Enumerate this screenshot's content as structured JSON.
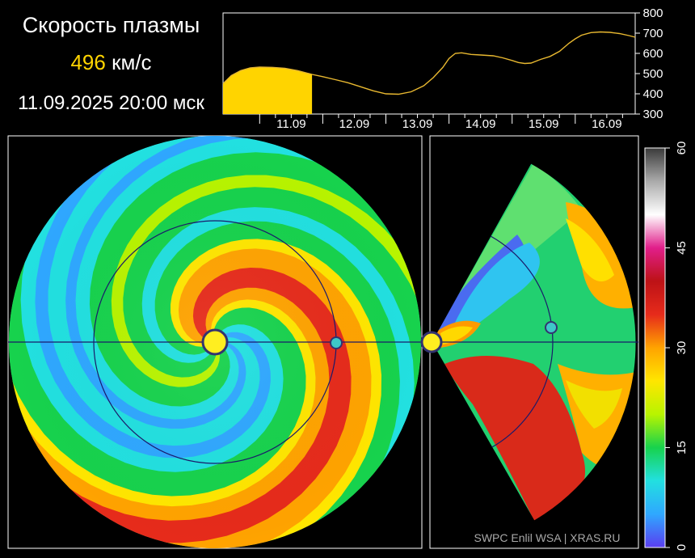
{
  "header": {
    "title": "Скорость плазмы",
    "speed_value": "496",
    "speed_unit": "км/с",
    "timestamp": "11.09.2025 20:00 мск"
  },
  "credit": "SWPC Enlil WSA  |  XRAS.RU",
  "colors": {
    "background": "#000000",
    "speed_fill": "#ffd400",
    "speed_line": "#e8b830",
    "earth": "#3ec8c8",
    "sun": "#ffee20"
  },
  "chart_data": [
    {
      "type": "area",
      "title": "",
      "xlabel": "",
      "ylabel": "",
      "x_tick_labels": [
        "11.09",
        "12.09",
        "13.09",
        "14.09",
        "15.09",
        "16.09"
      ],
      "yticks": [
        300,
        400,
        500,
        600,
        700,
        800
      ],
      "ylim": [
        300,
        800
      ],
      "xlim_days": [
        10.42,
        16.95
      ],
      "current_time_day": 11.83,
      "grid": false,
      "series": [
        {
          "x": [
            10.42,
            10.55,
            10.7,
            10.85,
            11.0,
            11.2,
            11.4,
            11.6,
            11.83,
            12.0,
            12.2,
            12.4,
            12.6,
            12.8,
            13.0,
            13.2,
            13.4,
            13.6,
            13.75,
            13.9,
            14.0,
            14.1,
            14.2,
            14.35,
            14.5,
            14.7,
            14.85,
            15.0,
            15.1,
            15.2,
            15.3,
            15.45,
            15.6,
            15.75,
            15.9,
            16.0,
            16.1,
            16.25,
            16.4,
            16.55,
            16.7,
            16.85,
            16.95
          ],
          "values": [
            450,
            490,
            515,
            528,
            532,
            531,
            526,
            515,
            496,
            485,
            470,
            455,
            435,
            415,
            400,
            398,
            410,
            440,
            480,
            530,
            575,
            600,
            603,
            595,
            592,
            588,
            578,
            565,
            555,
            550,
            552,
            570,
            585,
            610,
            650,
            672,
            690,
            703,
            706,
            704,
            698,
            688,
            680
          ]
        }
      ]
    },
    {
      "type": "heatmap",
      "title": "",
      "colorbar_ticks": [
        0,
        15,
        30,
        45,
        60
      ],
      "colorbar_range": [
        0,
        60
      ],
      "colorbar_colors": [
        "#5a3df0",
        "#2fa7ff",
        "#22e0e0",
        "#17d24d",
        "#b8f400",
        "#ffe600",
        "#ffa300",
        "#e62b1b",
        "#bd1216",
        "#e11e8a",
        "#ffffff",
        "#aaaaaa",
        "#3a3a3a"
      ]
    }
  ]
}
